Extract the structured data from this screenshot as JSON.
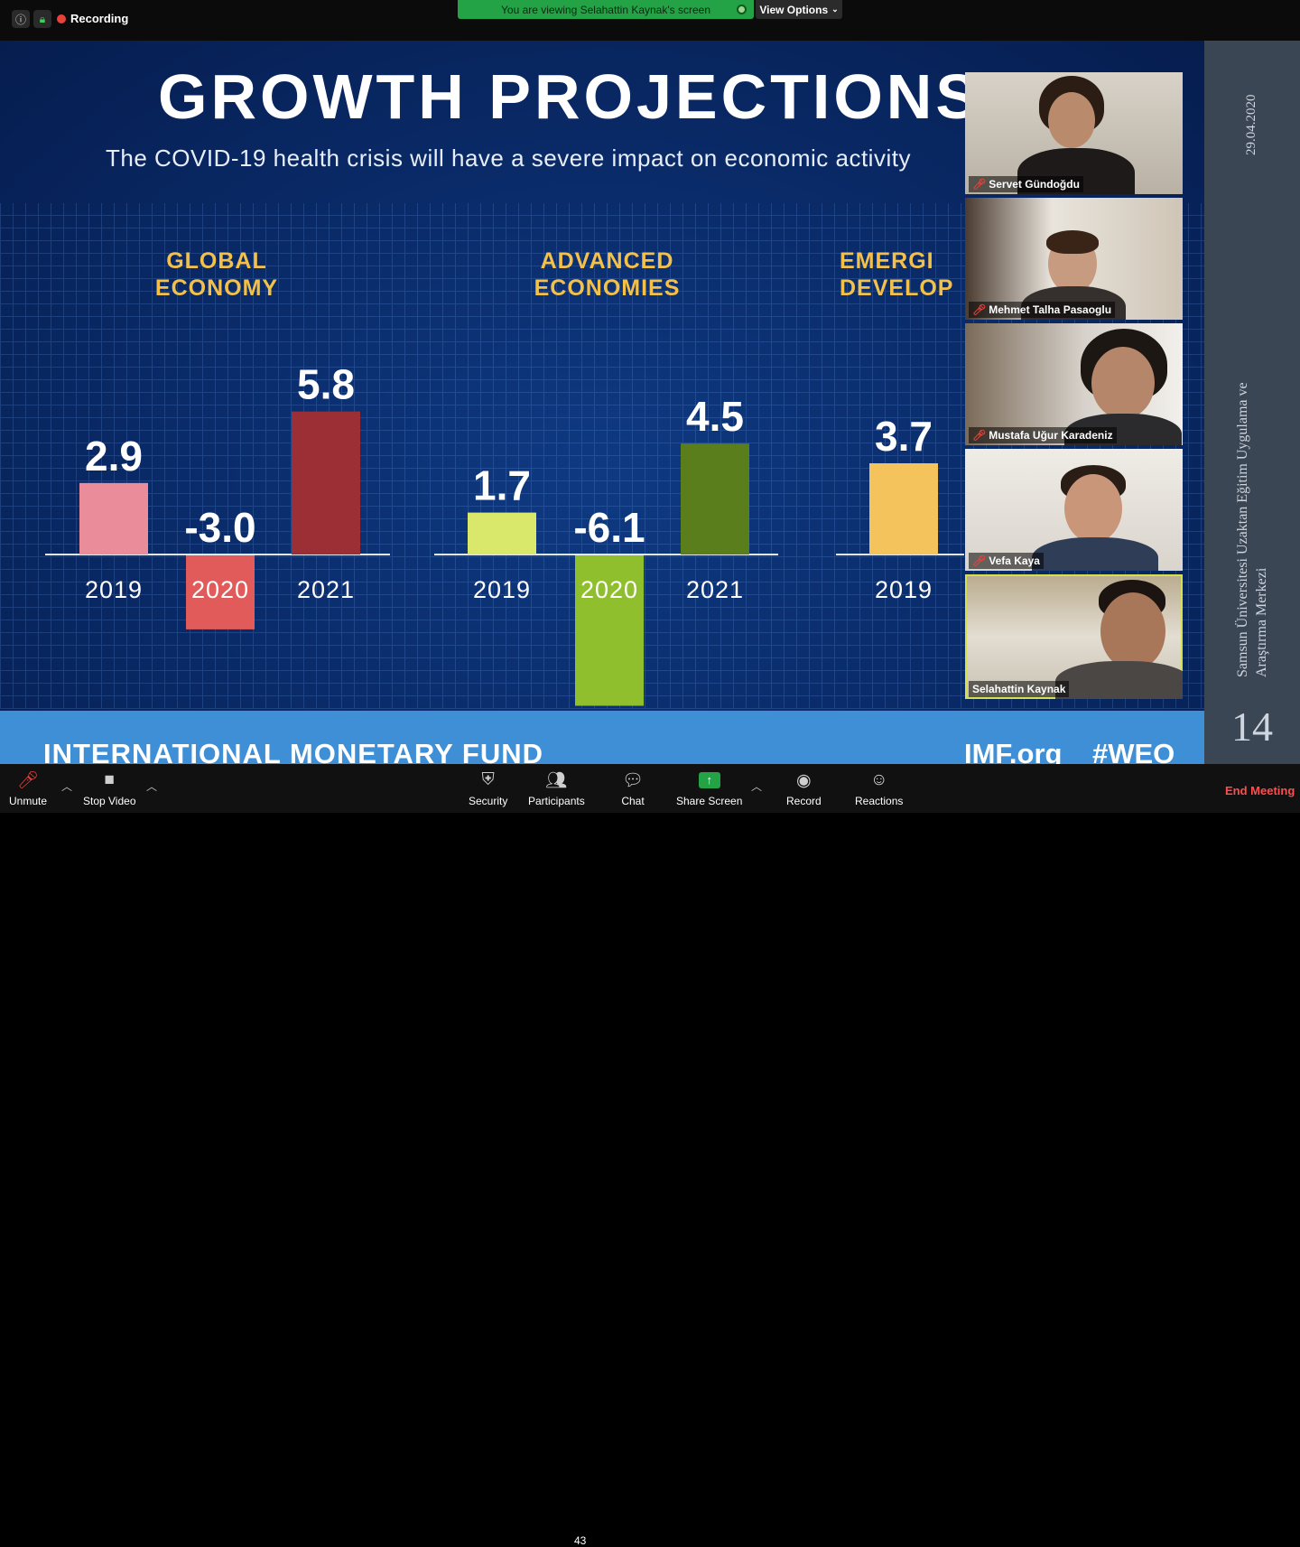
{
  "topbar": {
    "recording_label": "Recording",
    "viewing_label": "You are viewing Selahattin Kaynak's screen",
    "view_options_label": "View Options"
  },
  "slide": {
    "title": "GROWTH PROJECTIONS",
    "subtitle": "The COVID-19 health crisis will have a severe impact on economic activity",
    "footer_left": "INTERNATIONAL MONETARY FUND",
    "footer_imf": "IMF.org",
    "footer_weo": "#WEO"
  },
  "chart_data": {
    "type": "bar",
    "groups": [
      {
        "name": "GLOBAL\nECONOMY",
        "categories": [
          "2019",
          "2020",
          "2021"
        ],
        "values": [
          2.9,
          -3.0,
          5.8
        ],
        "colors": [
          "#ea8c99",
          "#e25b5b",
          "#9b2f35"
        ]
      },
      {
        "name": "ADVANCED\nECONOMIES",
        "categories": [
          "2019",
          "2020",
          "2021"
        ],
        "values": [
          1.7,
          -6.1,
          4.5
        ],
        "colors": [
          "#d9e86a",
          "#8fbf2c",
          "#5a7e1b"
        ]
      },
      {
        "name": "EMERGI\nDEVELOP",
        "categories": [
          "2019"
        ],
        "values": [
          3.7
        ],
        "colors": [
          "#f5c35c"
        ]
      }
    ]
  },
  "participants": [
    {
      "name": "Servet Gündoğdu",
      "muted": true
    },
    {
      "name": "Mehmet Talha Pasaoglu",
      "muted": true
    },
    {
      "name": "Mustafa Uğur Karadeniz",
      "muted": true
    },
    {
      "name": "Vefa Kaya",
      "muted": true
    },
    {
      "name": "Selahattin Kaynak",
      "muted": false
    }
  ],
  "sidebar": {
    "date": "29.04.2020",
    "org": "Samsun Üniversitesi Uzaktan Eğitim Uygulama ve Araştırma Merkezi",
    "page": "14"
  },
  "toolbar": {
    "unmute": "Unmute",
    "stop_video": "Stop Video",
    "security": "Security",
    "participants": "Participants",
    "participant_count": "43",
    "chat": "Chat",
    "share_screen": "Share Screen",
    "record": "Record",
    "reactions": "Reactions",
    "end_meeting": "End Meeting"
  },
  "colors": {
    "accent_green": "#23a346",
    "end_red": "#ff4e4e",
    "slide_blue": "#0a2c6b"
  }
}
